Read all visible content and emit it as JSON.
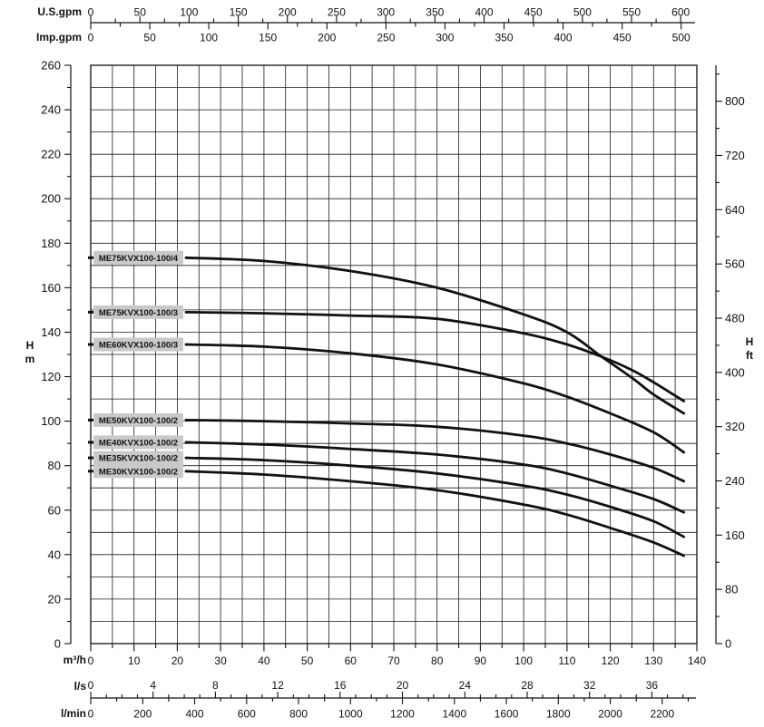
{
  "chart_data": {
    "type": "line",
    "title": "",
    "x_range_m3h": [
      0,
      140
    ],
    "y_range_m": [
      0,
      260
    ],
    "grid": {
      "x_step": 5,
      "y_step": 10,
      "on": true
    },
    "legend_position": "inline-left-labels",
    "colors": {
      "background": "#ffffff",
      "curve": "#111111",
      "grid": "#1c1c1c",
      "axis": "#111111",
      "text": "#111111",
      "label_box_bg": "#c9c9c9"
    },
    "axes": {
      "top": [
        {
          "id": "us-gpm",
          "label": "U.S.gpm",
          "to_m3h": 0.227125,
          "major_step": 50,
          "minor_step": 25,
          "max": 600
        },
        {
          "id": "imp-gpm",
          "label": "Imp.gpm",
          "to_m3h": 0.272766,
          "major_step": 50,
          "minor_step": 25,
          "max": 500
        }
      ],
      "bottom": [
        {
          "id": "m3h",
          "label": "m³/h",
          "to_m3h": 1,
          "major_step": 10,
          "minor_step": 5,
          "max": 140
        },
        {
          "id": "l-s",
          "label": "l/s",
          "to_m3h": 3.6,
          "major_step": 4,
          "minor_step": 1,
          "max": 36,
          "extend_minors": true
        },
        {
          "id": "l-min",
          "label": "l/min",
          "to_m3h": 0.06,
          "major_step": 200,
          "minor_step": 100,
          "max": 2200,
          "extend_minors": true
        }
      ],
      "left": {
        "id": "head-m",
        "unit_lines": [
          "H",
          "m"
        ],
        "major_step": 20,
        "minor_step": 10,
        "max": 260
      },
      "right": {
        "id": "head-ft",
        "unit_lines": [
          "H",
          "ft"
        ],
        "to_m": 0.3048,
        "major_step": 80,
        "minor_step": 40,
        "max": 800
      }
    },
    "series": [
      {
        "name": "ME75KVX100-100/4",
        "points": [
          [
            22,
            173.5
          ],
          [
            40,
            172
          ],
          [
            60,
            167.5
          ],
          [
            80,
            160
          ],
          [
            100,
            148
          ],
          [
            110,
            140
          ],
          [
            118,
            129
          ],
          [
            125,
            119.5
          ],
          [
            130,
            112
          ],
          [
            137,
            103.5
          ]
        ]
      },
      {
        "name": "ME75KVX100-100/3",
        "points": [
          [
            22,
            149
          ],
          [
            40,
            148.5
          ],
          [
            60,
            147.5
          ],
          [
            80,
            146
          ],
          [
            100,
            139.5
          ],
          [
            110,
            134.5
          ],
          [
            118,
            129
          ],
          [
            125,
            123
          ],
          [
            130,
            117.5
          ],
          [
            137,
            109
          ]
        ]
      },
      {
        "name": "ME60KVX100-100/3",
        "points": [
          [
            22,
            134.5
          ],
          [
            40,
            133.5
          ],
          [
            60,
            130.5
          ],
          [
            80,
            125.5
          ],
          [
            100,
            117
          ],
          [
            110,
            111
          ],
          [
            120,
            103.5
          ],
          [
            130,
            95
          ],
          [
            137,
            86
          ]
        ]
      },
      {
        "name": "ME50KVX100-100/2",
        "points": [
          [
            22,
            100.5
          ],
          [
            40,
            100
          ],
          [
            60,
            99
          ],
          [
            80,
            97.5
          ],
          [
            100,
            93.5
          ],
          [
            110,
            90
          ],
          [
            120,
            85
          ],
          [
            130,
            79
          ],
          [
            137,
            73
          ]
        ]
      },
      {
        "name": "ME40KVX100-100/2",
        "points": [
          [
            22,
            90.5
          ],
          [
            40,
            89.5
          ],
          [
            60,
            87.5
          ],
          [
            80,
            85
          ],
          [
            100,
            80.5
          ],
          [
            110,
            76.5
          ],
          [
            120,
            71
          ],
          [
            130,
            65
          ],
          [
            137,
            59
          ]
        ]
      },
      {
        "name": "ME35KVX100-100/2",
        "points": [
          [
            22,
            83.5
          ],
          [
            40,
            82.5
          ],
          [
            60,
            80
          ],
          [
            80,
            76.5
          ],
          [
            100,
            71
          ],
          [
            110,
            67
          ],
          [
            120,
            61.5
          ],
          [
            130,
            55
          ],
          [
            137,
            48
          ]
        ]
      },
      {
        "name": "ME30KVX100-100/2",
        "points": [
          [
            22,
            77.5
          ],
          [
            40,
            76
          ],
          [
            60,
            73
          ],
          [
            80,
            69
          ],
          [
            100,
            62.5
          ],
          [
            110,
            58
          ],
          [
            120,
            52
          ],
          [
            130,
            45.5
          ],
          [
            137,
            39.5
          ]
        ]
      }
    ]
  }
}
